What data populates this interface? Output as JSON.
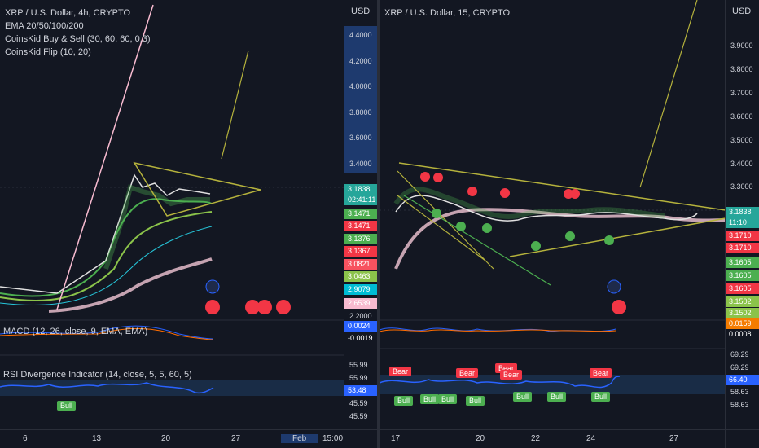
{
  "left": {
    "legend": [
      "XRP / U.S. Dollar, 4h, CRYPTO",
      "EMA 20/50/100/200",
      "CoinsKid Buy & Sell (30, 60, 60, 0.3)",
      "CoinsKid Flip (10, 20)"
    ],
    "axis_currency": "USD",
    "price_ticks": [
      "4.4000",
      "4.2000",
      "4.0000",
      "3.8000",
      "3.6000",
      "3.4000",
      "2.2000"
    ],
    "price_tags": [
      {
        "text": "3.1838",
        "color": "#26a69a"
      },
      {
        "text": "02:41:11",
        "color": "#26a69a"
      },
      {
        "text": "3.1471",
        "color": "#4caf50"
      },
      {
        "text": "3.1471",
        "color": "#f23645"
      },
      {
        "text": "3.1376",
        "color": "#4caf50"
      },
      {
        "text": "3.1367",
        "color": "#f23645"
      },
      {
        "text": "3.0821",
        "color": "#f7525f"
      },
      {
        "text": "3.0463",
        "color": "#8bc34a"
      },
      {
        "text": "2.9079",
        "color": "#00bcd4"
      },
      {
        "text": "2.6539",
        "color": "#f8bbd0"
      }
    ],
    "macd_label": "MACD (12, 26, close, 9, EMA, EMA)",
    "macd_tags": [
      {
        "text": "0.0024",
        "color": "#2962ff"
      },
      {
        "text": "-0.0019",
        "color": "#131722"
      }
    ],
    "rsi_label": "RSI Divergence Indicator (14, close, 5, 5, 60, 5)",
    "rsi_ticks": [
      "55.99",
      "55.99",
      "53.48",
      "45.59",
      "45.59"
    ],
    "rsi_badges": [
      "Bull"
    ],
    "x_labels": [
      "6",
      "13",
      "20",
      "27",
      "Feb",
      "15:00"
    ]
  },
  "right": {
    "legend": [
      "XRP / U.S. Dollar, 15, CRYPTO"
    ],
    "axis_currency": "USD",
    "price_ticks": [
      "3.9000",
      "3.8000",
      "3.7000",
      "3.6000",
      "3.5000",
      "3.4000",
      "3.3000"
    ],
    "price_tags": [
      {
        "text": "3.1838",
        "color": "#26a69a"
      },
      {
        "text": "11:10",
        "color": "#26a69a"
      },
      {
        "text": "3.1710",
        "color": "#f23645"
      },
      {
        "text": "3.1710",
        "color": "#f23645"
      },
      {
        "text": "3.1605",
        "color": "#4caf50"
      },
      {
        "text": "3.1605",
        "color": "#4caf50"
      },
      {
        "text": "3.1605",
        "color": "#f23645"
      },
      {
        "text": "3.1502",
        "color": "#8bc34a"
      },
      {
        "text": "3.1502",
        "color": "#8bc34a"
      }
    ],
    "macd_tags": [
      {
        "text": "0.0159",
        "color": "#f57c00"
      },
      {
        "text": "0.0008",
        "color": "#131722"
      }
    ],
    "rsi_ticks": [
      "69.29",
      "69.29",
      "66.40",
      "58.63",
      "58.63"
    ],
    "rsi_badges_bear": [
      "Bear",
      "Bear",
      "Bear",
      "Bear",
      "Bear"
    ],
    "rsi_badges_bull": [
      "Bull",
      "Bull",
      "Bull",
      "Bull",
      "Bull",
      "Bull",
      "Bull"
    ],
    "x_labels": [
      "17",
      "20",
      "22",
      "24",
      "27"
    ]
  },
  "colors": {
    "background": "#131722",
    "grid": "#2a2e39",
    "bull": "#4caf50",
    "bear": "#f23645",
    "ema200": "#c5a3b1",
    "trendline": "#b5b23c",
    "rsi_line": "#2962ff"
  }
}
